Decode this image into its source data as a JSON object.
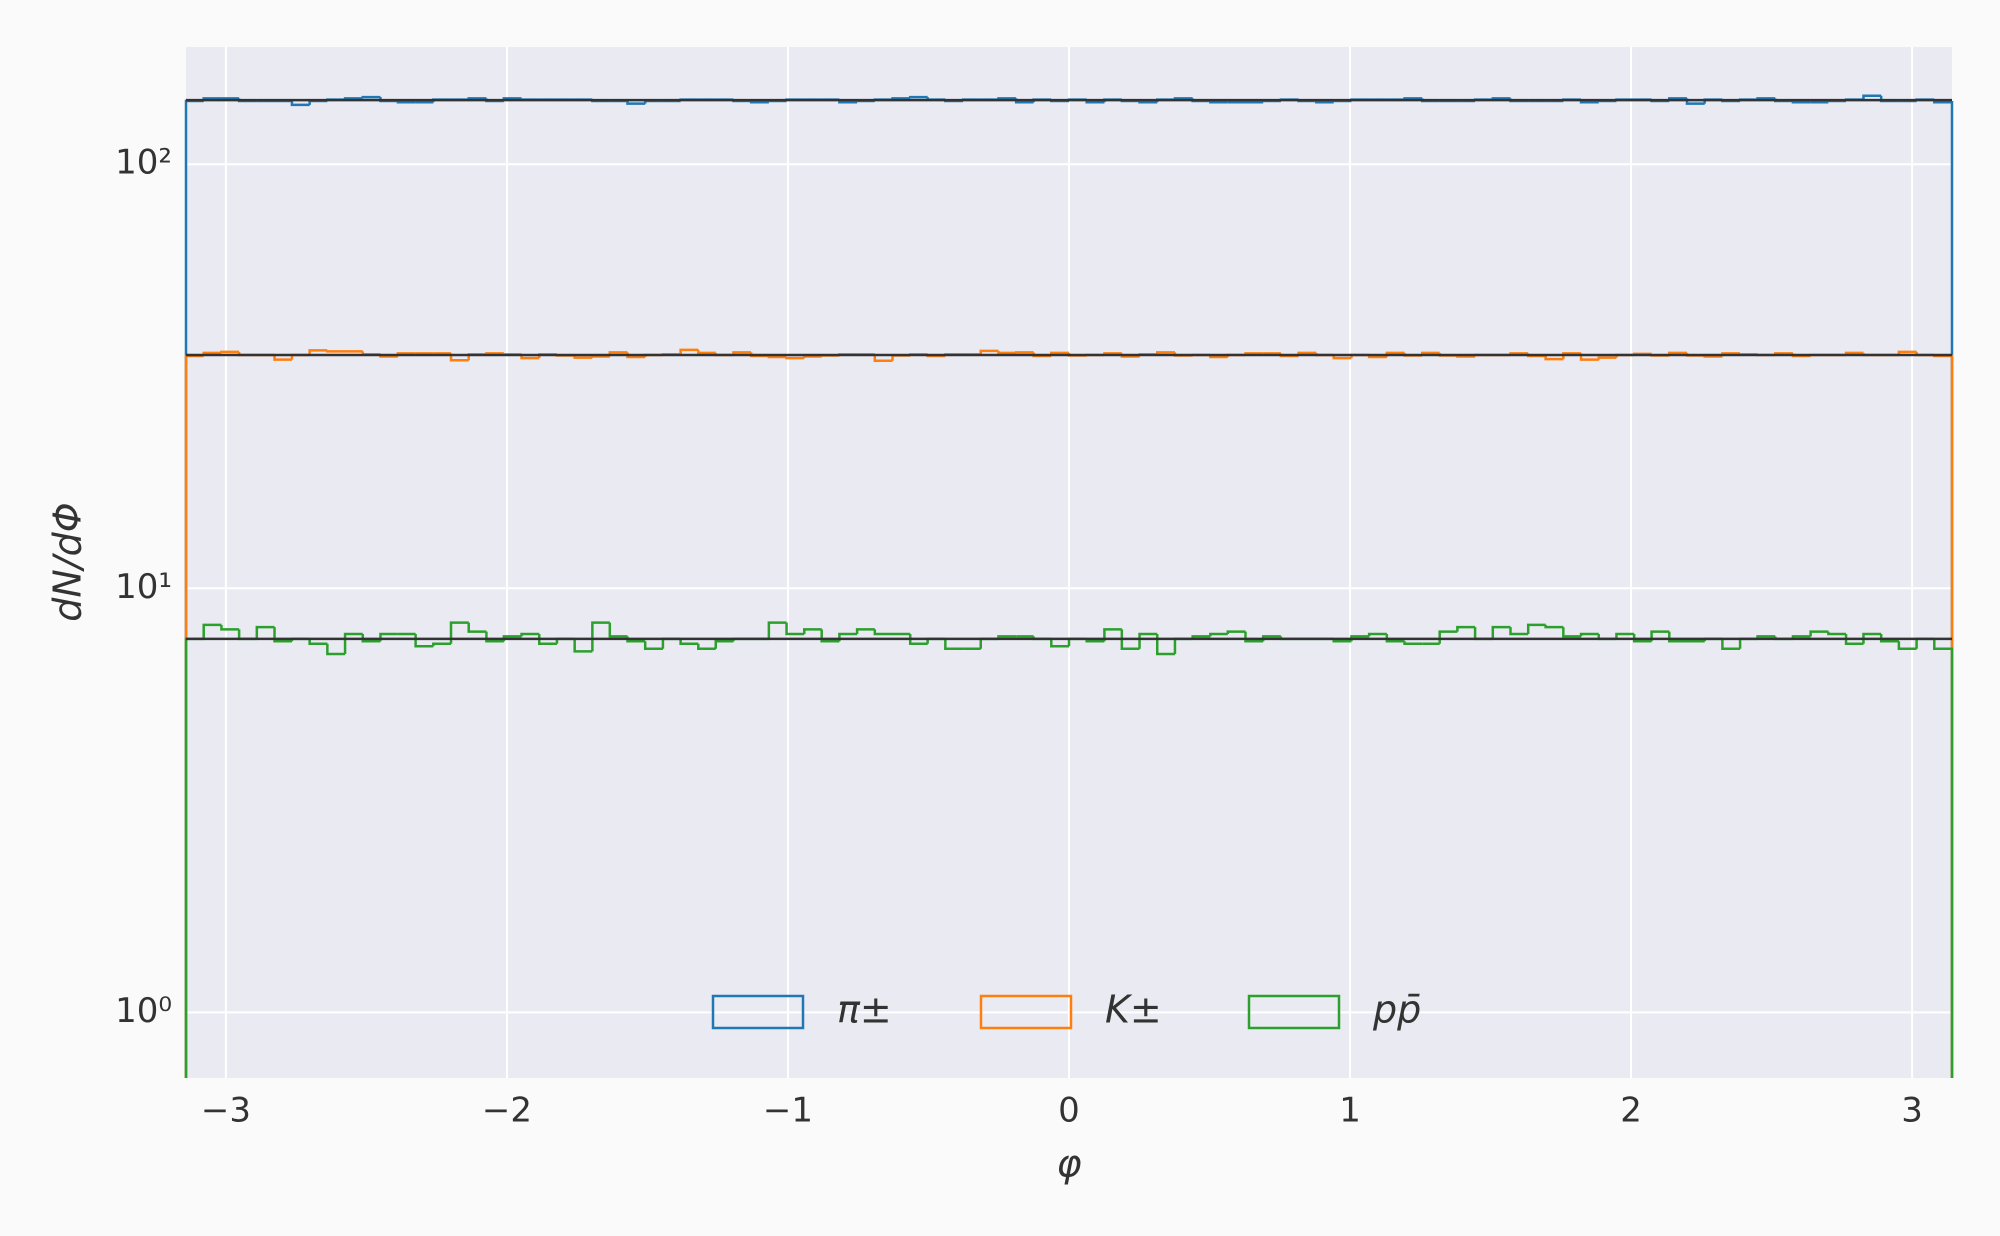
{
  "chart_data": {
    "type": "histogram",
    "xlabel": "φ",
    "ylabel": "dN/dΦ",
    "xlim": [
      -3.142,
      3.142
    ],
    "ylim": [
      0.7,
      189
    ],
    "log_y": true,
    "grid": true,
    "legend": "lower center",
    "xticks": [
      {
        "value": -3,
        "label": "−3"
      },
      {
        "value": -2,
        "label": "−2"
      },
      {
        "value": -1,
        "label": "−1"
      },
      0,
      1,
      2,
      3
    ],
    "yticks": [
      {
        "value": 1,
        "label": "10⁰"
      },
      {
        "value": 10,
        "label": "10¹"
      },
      {
        "value": 100,
        "label": "10²"
      }
    ],
    "bins": [
      -3.142,
      -3.079,
      -3.016,
      -2.953,
      -2.89,
      -2.827,
      -2.765,
      -2.702,
      -2.639,
      -2.576,
      -2.513,
      -2.45,
      -2.388,
      -2.325,
      -2.262,
      -2.199,
      -2.136,
      -2.073,
      -2.011,
      -1.948,
      -1.885,
      -1.822,
      -1.759,
      -1.696,
      -1.634,
      -1.571,
      -1.508,
      -1.445,
      -1.382,
      -1.319,
      -1.257,
      -1.194,
      -1.131,
      -1.068,
      -1.005,
      -0.942,
      -0.88,
      -0.817,
      -0.754,
      -0.691,
      -0.628,
      -0.565,
      -0.503,
      -0.44,
      -0.377,
      -0.314,
      -0.251,
      -0.188,
      -0.126,
      -0.063,
      0,
      0.063,
      0.126,
      0.188,
      0.251,
      0.314,
      0.377,
      0.44,
      0.503,
      0.565,
      0.628,
      0.691,
      0.754,
      0.817,
      0.88,
      0.942,
      1.005,
      1.068,
      1.131,
      1.194,
      1.257,
      1.319,
      1.382,
      1.445,
      1.508,
      1.571,
      1.634,
      1.696,
      1.759,
      1.822,
      1.885,
      1.948,
      2.011,
      2.073,
      2.136,
      2.199,
      2.262,
      2.325,
      2.388,
      2.45,
      2.513,
      2.576,
      2.639,
      2.702,
      2.765,
      2.827,
      2.89,
      2.953,
      3.016,
      3.079,
      3.142
    ],
    "series": [
      {
        "name": "π±",
        "color": "#1f77b4",
        "fit": 141.6,
        "values": [
          141,
          143,
          143,
          141,
          141,
          141,
          138,
          141,
          142,
          143,
          144,
          141,
          140,
          140,
          142,
          142,
          143,
          141,
          143,
          142,
          142,
          142,
          142,
          141,
          141,
          139,
          141,
          141,
          142,
          142,
          142,
          141,
          140,
          141,
          142,
          142,
          142,
          140,
          141,
          142,
          143,
          144,
          142,
          141,
          142,
          142,
          143,
          140,
          142,
          141,
          142,
          140,
          142,
          141,
          140,
          142,
          143,
          141,
          140,
          140,
          140,
          141,
          142,
          141,
          140,
          141,
          142,
          142,
          142,
          143,
          141,
          141,
          141,
          142,
          143,
          141,
          141,
          141,
          142,
          140,
          141,
          142,
          142,
          141,
          143,
          139,
          142,
          141,
          142,
          143,
          141,
          140,
          140,
          141,
          142,
          145,
          141,
          141,
          142,
          140
        ]
      },
      {
        "name": "K±",
        "color": "#ff7f0e",
        "fit": 35.5,
        "values": [
          35.3,
          35.9,
          36.1,
          35.5,
          35.5,
          34.6,
          35.5,
          36.4,
          36.2,
          36.2,
          35.6,
          35.2,
          35.8,
          35.8,
          35.8,
          34.5,
          35.6,
          35.8,
          35.6,
          34.9,
          35.6,
          35.4,
          35.0,
          35.2,
          36.0,
          35.1,
          35.5,
          35.6,
          36.5,
          35.9,
          35.5,
          36.0,
          35.3,
          35.1,
          34.9,
          35.2,
          35.4,
          35.6,
          35.6,
          34.4,
          35.4,
          35.6,
          35.3,
          35.6,
          35.6,
          36.3,
          35.9,
          36.0,
          35.3,
          35.9,
          35.4,
          35.5,
          35.8,
          35.2,
          35.6,
          36.0,
          35.4,
          35.5,
          35.1,
          35.5,
          35.8,
          35.8,
          35.3,
          35.9,
          35.5,
          34.9,
          35.5,
          35.1,
          35.9,
          35.4,
          35.9,
          35.4,
          35.2,
          35.5,
          35.5,
          35.8,
          35.3,
          34.7,
          35.8,
          34.6,
          35.0,
          35.5,
          35.7,
          35.4,
          35.9,
          35.4,
          35.2,
          35.8,
          35.6,
          35.5,
          35.8,
          35.3,
          35.5,
          35.5,
          35.9,
          35.5,
          35.5,
          36.1,
          35.5,
          35.3
        ]
      },
      {
        "name": "pp̄",
        "color": "#2ca02c",
        "fit": 7.6,
        "values": [
          7.6,
          8.2,
          8.0,
          7.6,
          8.1,
          7.5,
          7.6,
          7.4,
          7.0,
          7.8,
          7.5,
          7.8,
          7.8,
          7.3,
          7.4,
          8.3,
          7.9,
          7.5,
          7.7,
          7.8,
          7.4,
          7.6,
          7.1,
          8.3,
          7.7,
          7.5,
          7.2,
          7.6,
          7.4,
          7.2,
          7.5,
          7.6,
          7.6,
          8.3,
          7.8,
          8.0,
          7.5,
          7.8,
          8.0,
          7.8,
          7.8,
          7.4,
          7.6,
          7.2,
          7.2,
          7.6,
          7.7,
          7.7,
          7.6,
          7.3,
          7.6,
          7.5,
          8.0,
          7.2,
          7.8,
          7.0,
          7.6,
          7.7,
          7.8,
          7.9,
          7.5,
          7.7,
          7.6,
          7.6,
          7.6,
          7.5,
          7.7,
          7.8,
          7.5,
          7.4,
          7.4,
          7.9,
          8.1,
          7.6,
          8.1,
          7.8,
          8.2,
          8.1,
          7.7,
          7.8,
          7.6,
          7.8,
          7.5,
          7.9,
          7.5,
          7.5,
          7.6,
          7.2,
          7.6,
          7.7,
          7.6,
          7.7,
          7.9,
          7.8,
          7.4,
          7.8,
          7.5,
          7.2,
          7.6,
          7.2
        ]
      }
    ]
  }
}
